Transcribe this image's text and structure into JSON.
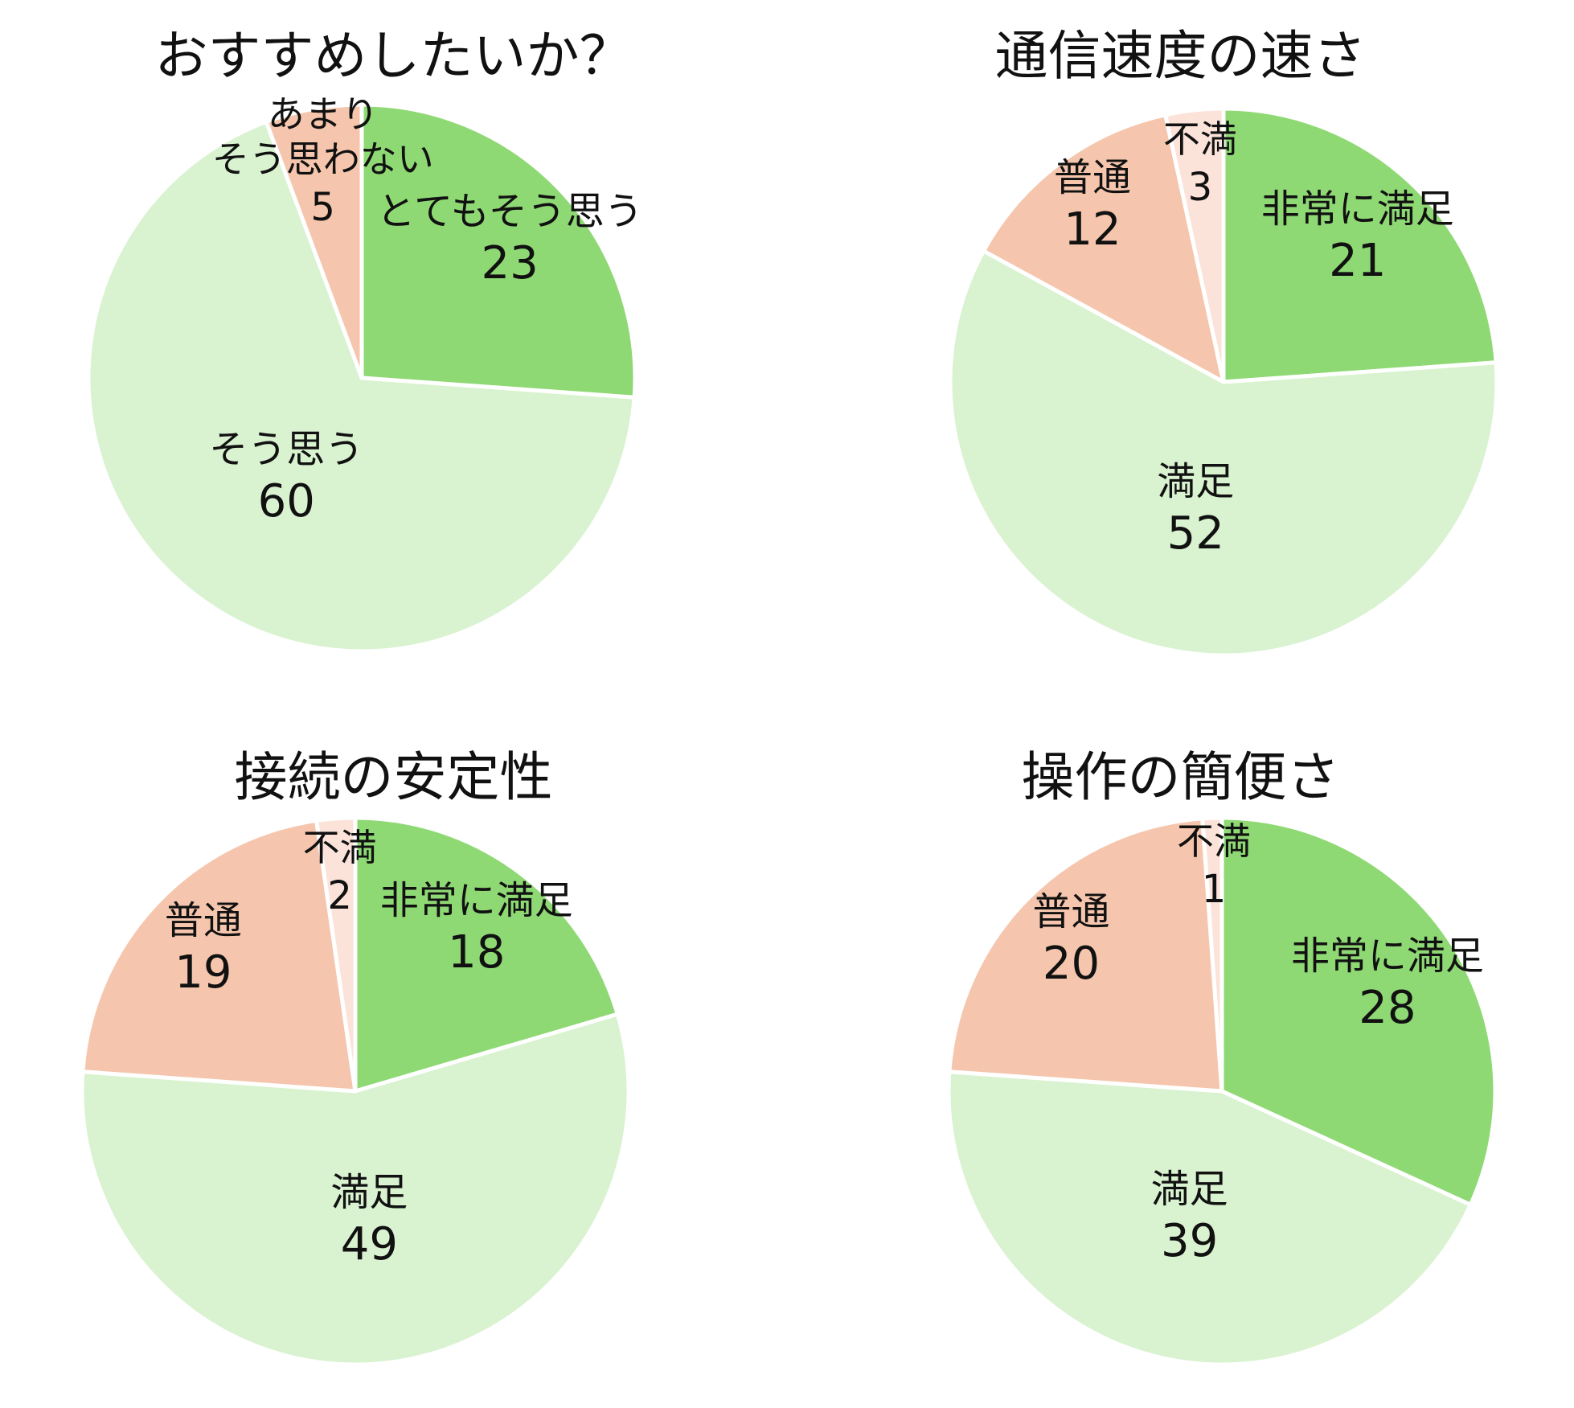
{
  "chart_data": [
    {
      "type": "pie",
      "title": "おすすめしたいか？",
      "categories": [
        "とてもそう思う",
        "そう思う",
        "あまりそう思わない"
      ],
      "label_lines": [
        [
          "とてもそう思う"
        ],
        [
          "そう思う"
        ],
        [
          "あまり",
          "そう思わない"
        ]
      ],
      "values": [
        23,
        60,
        5
      ],
      "colors": [
        "#8fd975",
        "#d9f2d0",
        "#f5c6ad"
      ]
    },
    {
      "type": "pie",
      "title": "通信速度の速さ",
      "categories": [
        "非常に満足",
        "満足",
        "普通",
        "不満"
      ],
      "label_lines": [
        [
          "非常に満足"
        ],
        [
          "満足"
        ],
        [
          "普通"
        ],
        [
          "不満"
        ]
      ],
      "values": [
        21,
        52,
        12,
        3
      ],
      "colors": [
        "#8fd975",
        "#d9f2d0",
        "#f5c6ad",
        "#fbe3da"
      ]
    },
    {
      "type": "pie",
      "title": "接続の安定性",
      "categories": [
        "非常に満足",
        "満足",
        "普通",
        "不満"
      ],
      "label_lines": [
        [
          "非常に満足"
        ],
        [
          "満足"
        ],
        [
          "普通"
        ],
        [
          "不満"
        ]
      ],
      "values": [
        18,
        49,
        19,
        2
      ],
      "colors": [
        "#8fd975",
        "#d9f2d0",
        "#f5c6ad",
        "#fbe3da"
      ]
    },
    {
      "type": "pie",
      "title": "操作の簡便さ",
      "categories": [
        "非常に満足",
        "満足",
        "普通",
        "不満"
      ],
      "label_lines": [
        [
          "非常に満足"
        ],
        [
          "満足"
        ],
        [
          "普通"
        ],
        [
          "不満"
        ]
      ],
      "values": [
        28,
        39,
        20,
        1
      ],
      "colors": [
        "#8fd975",
        "#d9f2d0",
        "#f5c6ad",
        "#fbe3da"
      ]
    }
  ]
}
